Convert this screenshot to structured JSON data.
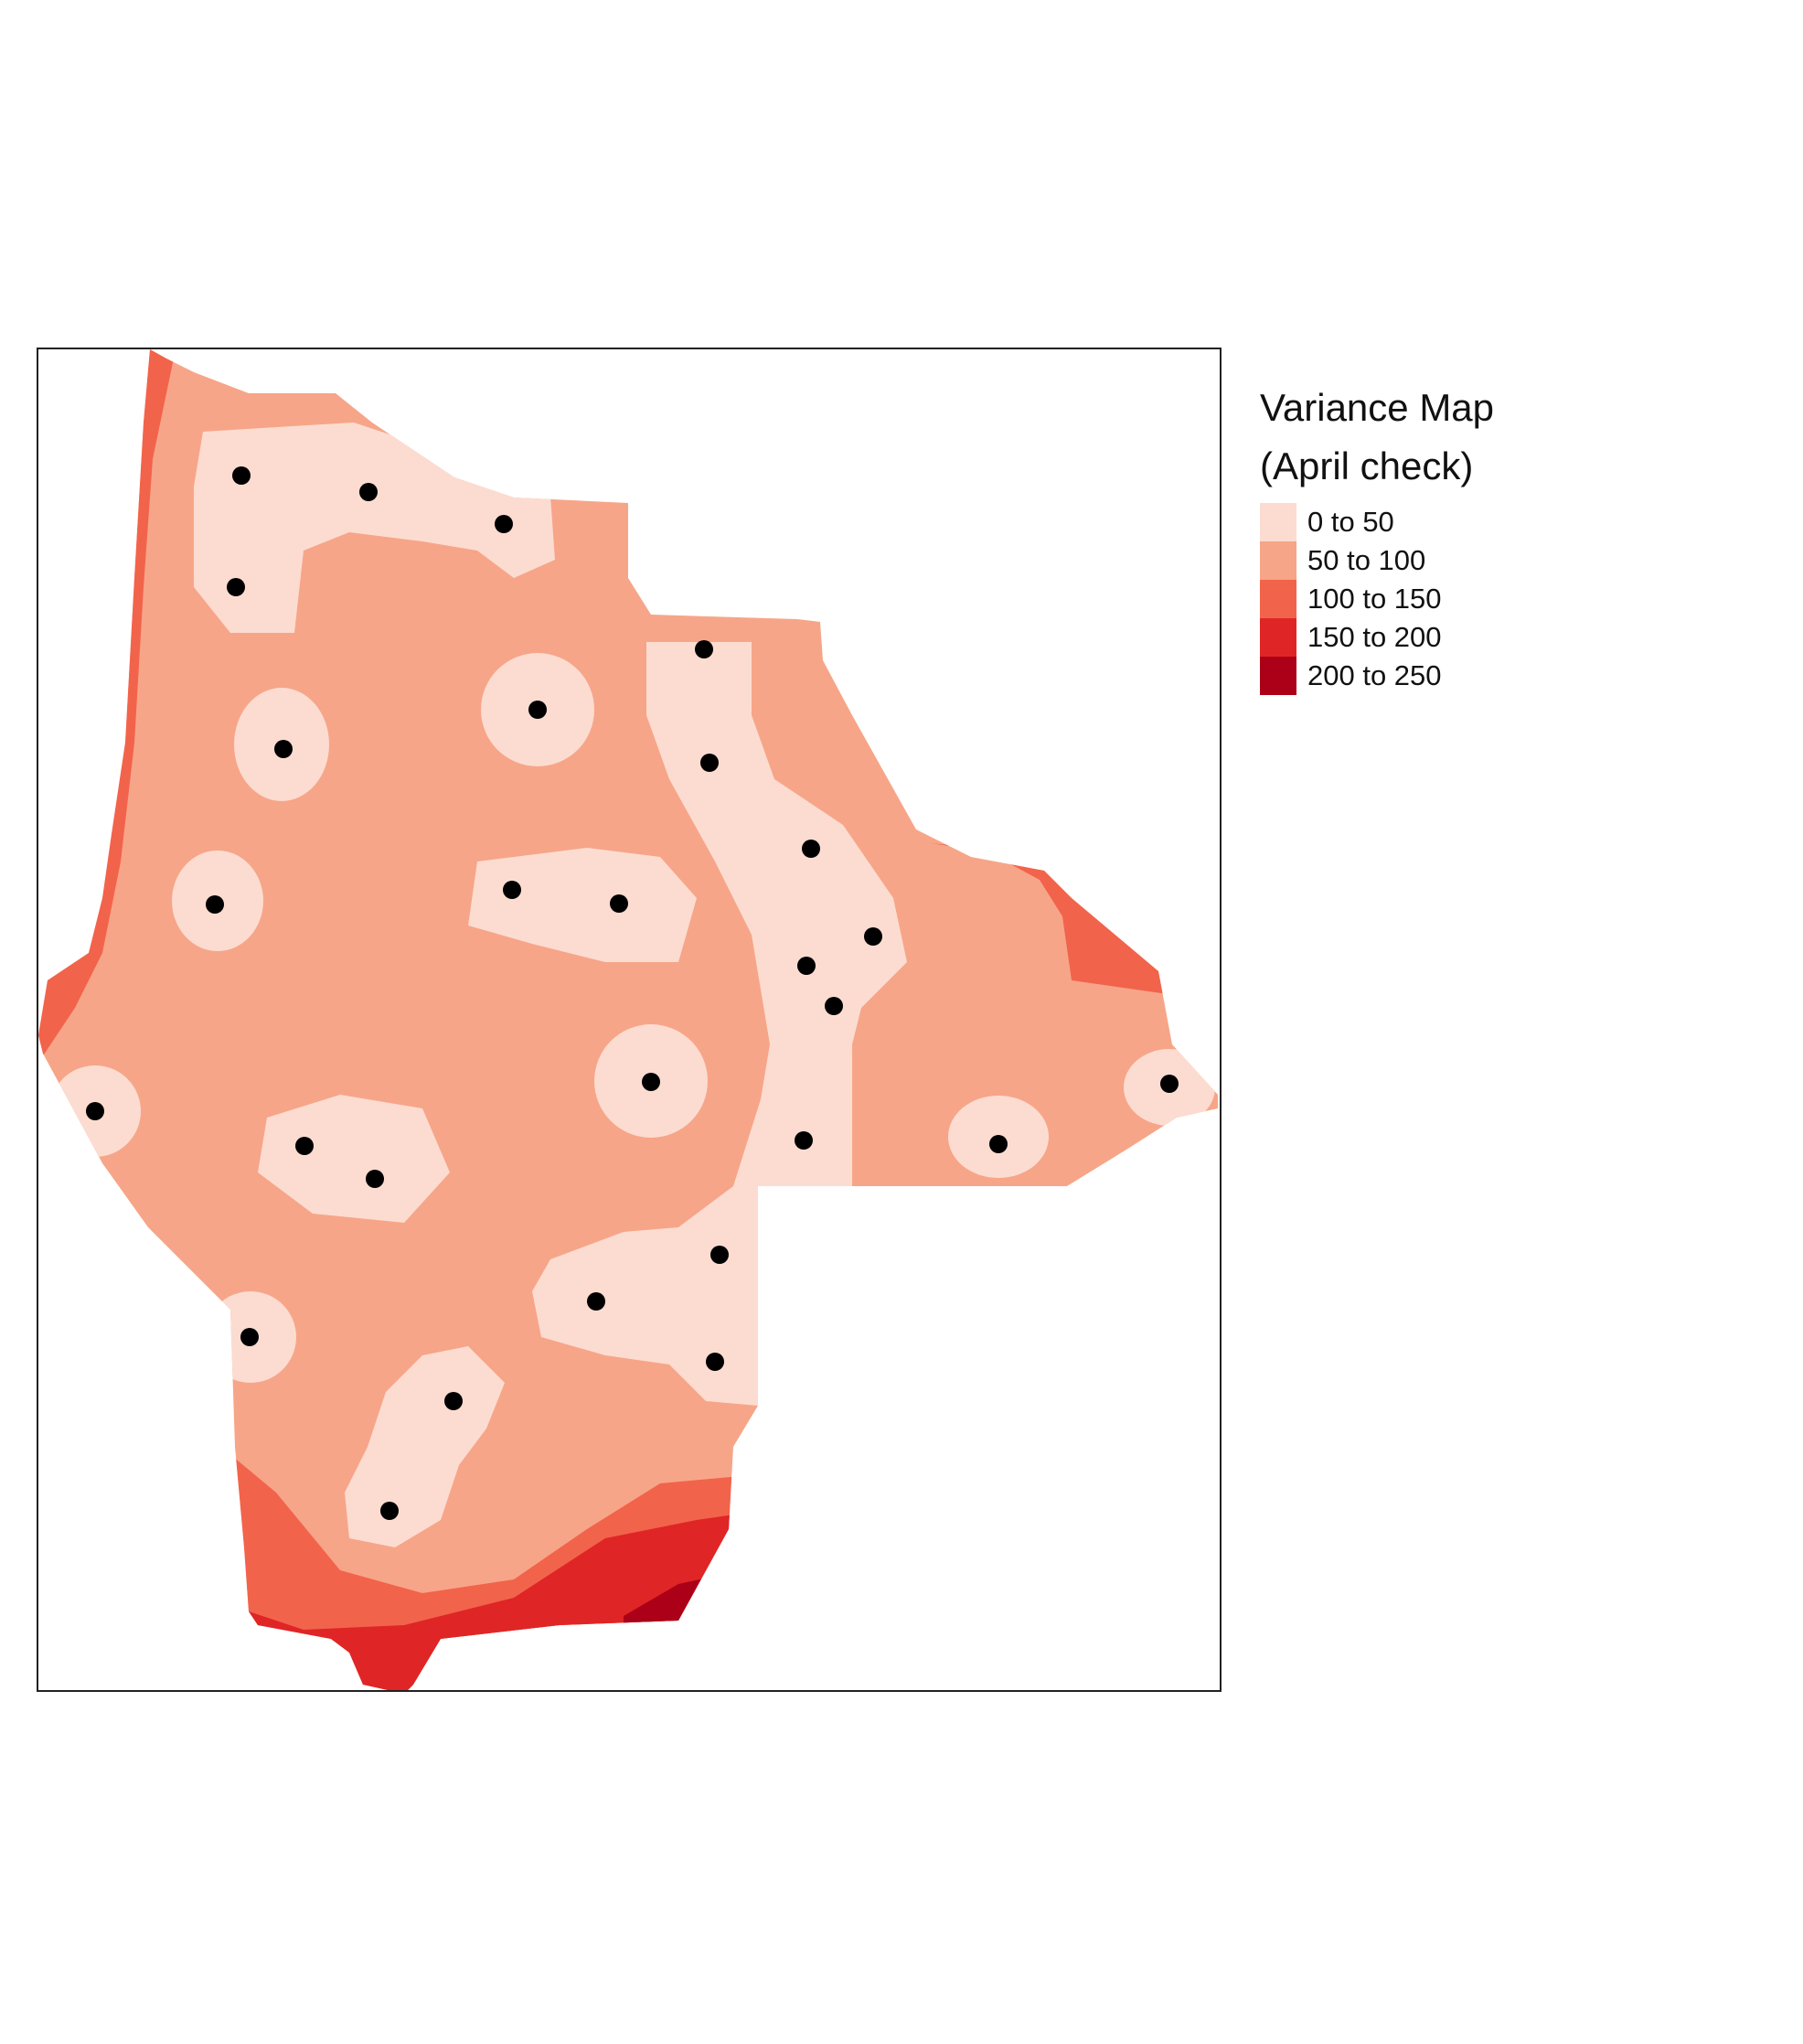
{
  "map": {
    "title_line1": "Variance Map",
    "title_line2": "(April check)",
    "legend": [
      {
        "label": "0 to 50",
        "color": "#fcdcd1"
      },
      {
        "label": "50 to 100",
        "color": "#f7a588"
      },
      {
        "label": "100 to 150",
        "color": "#f2634b"
      },
      {
        "label": "150 to 200",
        "color": "#e02526"
      },
      {
        "label": "200 to 250",
        "color": "#ac0019"
      }
    ],
    "point_color": "#000000"
  }
}
